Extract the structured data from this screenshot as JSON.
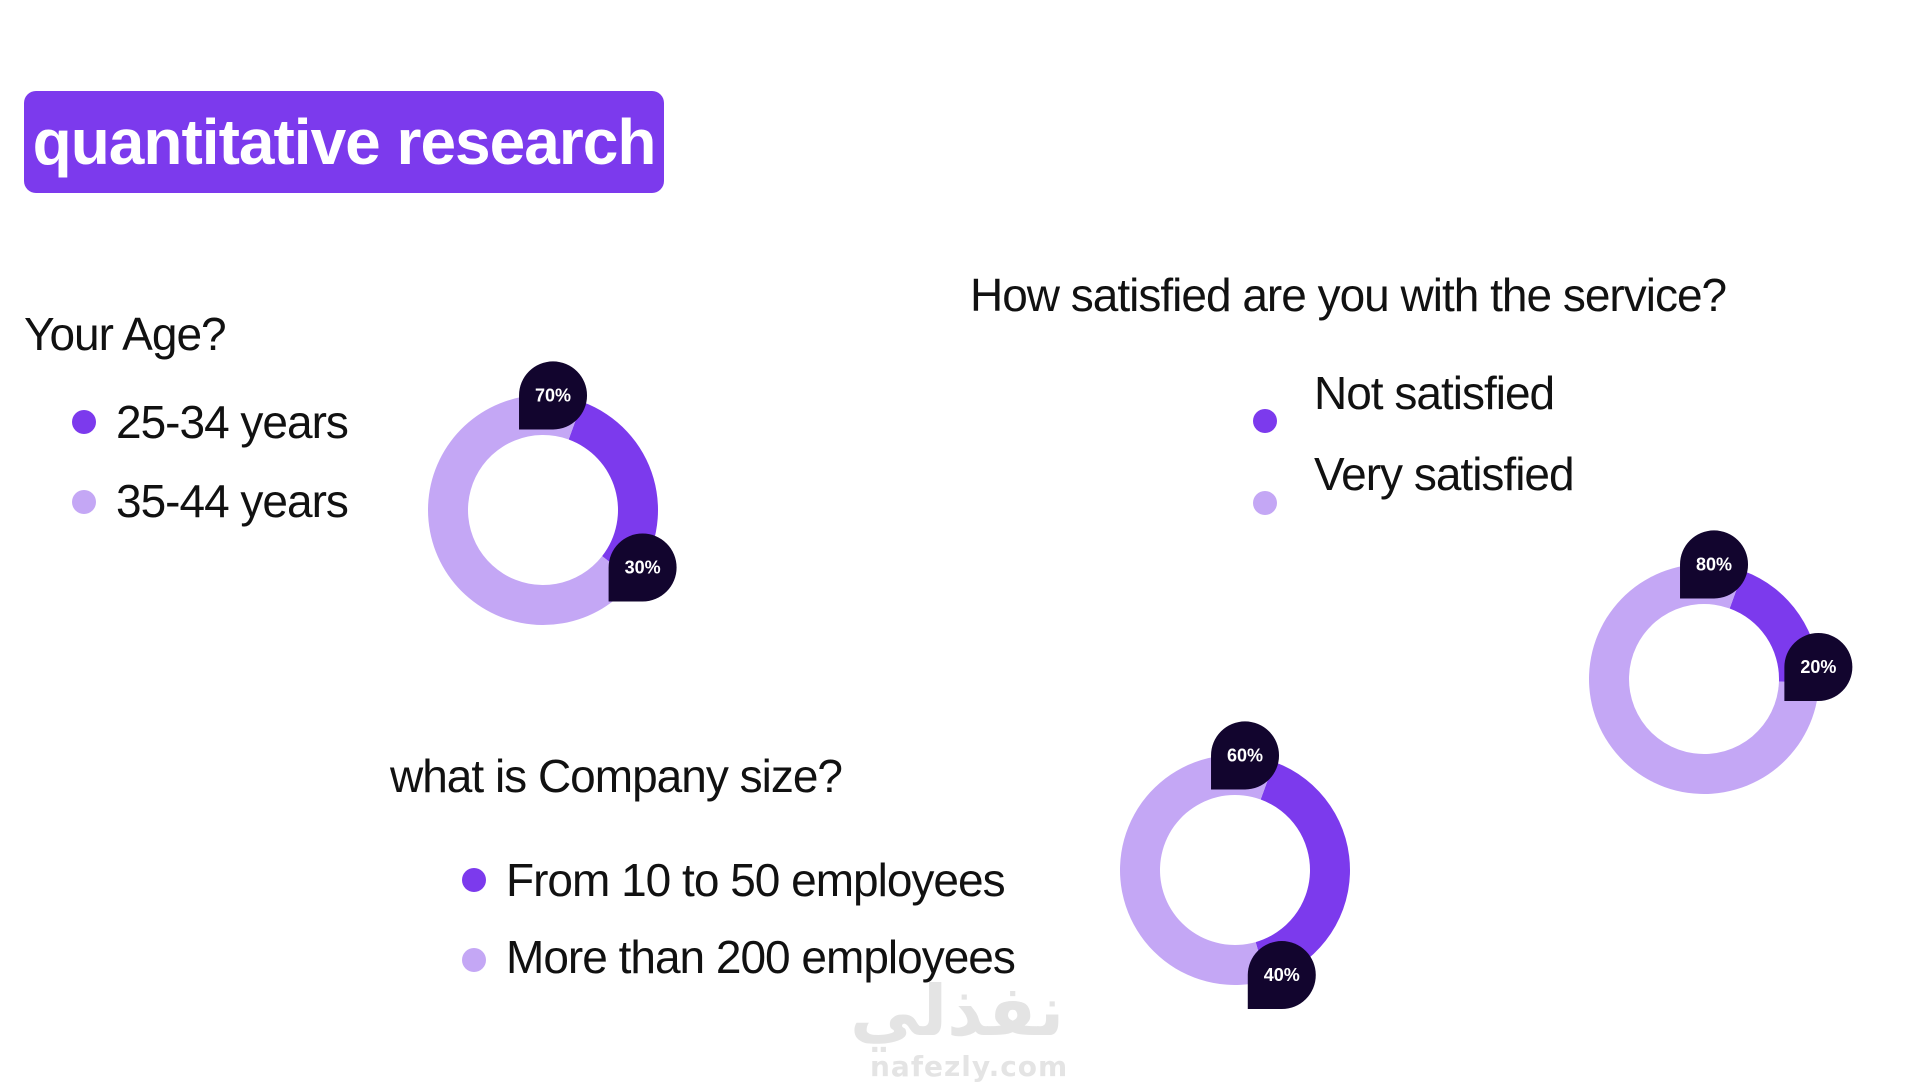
{
  "header": {
    "title": "quantitative research"
  },
  "colors": {
    "primary": "#7c3aed",
    "secondary": "#c4a7f5",
    "badge": "#12052e"
  },
  "watermark": {
    "arabic": "نفذلي",
    "latin": "nafezly.com"
  },
  "chart_data": [
    {
      "type": "pie",
      "variant": "donut",
      "title": "Your Age?",
      "categories": [
        "25-34 years",
        "35-44 years"
      ],
      "values": [
        30,
        70
      ],
      "value_labels": [
        "30%",
        "70%"
      ],
      "colors": [
        "#7c3aed",
        "#c4a7f5"
      ]
    },
    {
      "type": "pie",
      "variant": "donut",
      "title": "How satisfied are you with the service?",
      "categories": [
        "Not satisfied",
        "Very satisfied"
      ],
      "values": [
        20,
        80
      ],
      "value_labels": [
        "20%",
        "80%"
      ],
      "colors": [
        "#7c3aed",
        "#c4a7f5"
      ]
    },
    {
      "type": "pie",
      "variant": "donut",
      "title": "what is Company size?",
      "categories": [
        "From 10 to 50 employees",
        "More than 200 employees"
      ],
      "values": [
        40,
        60
      ],
      "value_labels": [
        "40%",
        "60%"
      ],
      "colors": [
        "#7c3aed",
        "#c4a7f5"
      ]
    }
  ]
}
